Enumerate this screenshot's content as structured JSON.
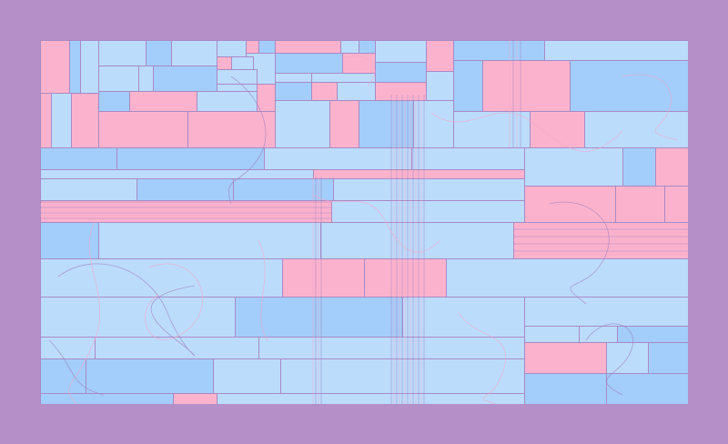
{
  "artwork": {
    "palette": {
      "background": "#b48fc8",
      "frame_line": "#a98ac6",
      "pink": "#fbb3cd",
      "light_blue": "#bcdcfc",
      "mid_blue": "#a3cdfa",
      "curve_pink": "#f5a6c8",
      "curve_purple": "#9c7fbf"
    }
  }
}
